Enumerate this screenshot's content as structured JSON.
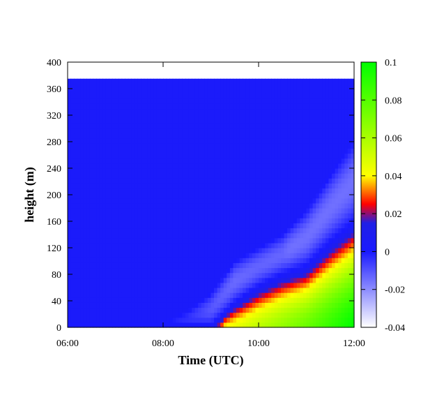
{
  "chart_data": {
    "type": "heatmap",
    "xlabel": "Time (UTC)",
    "ylabel": "height (m)",
    "x_range_hours": [
      6,
      12
    ],
    "x_ticks": [
      {
        "value": 6,
        "label": "06:00"
      },
      {
        "value": 8,
        "label": "08:00"
      },
      {
        "value": 10,
        "label": "10:00"
      },
      {
        "value": 12,
        "label": "12:00"
      }
    ],
    "ylim": [
      0,
      400
    ],
    "y_ticks": [
      0,
      40,
      80,
      120,
      160,
      200,
      240,
      280,
      320,
      360,
      400
    ],
    "data_top_height": 375,
    "colorbar": {
      "range": [
        -0.04,
        0.1
      ],
      "ticks": [
        -0.04,
        -0.02,
        0,
        0.02,
        0.04,
        0.06,
        0.08,
        0.1
      ],
      "tick_labels": [
        "-0.04",
        "-0.02",
        "0",
        "0.02",
        "0.04",
        "0.06",
        "0.08",
        "0.1"
      ],
      "colormap": [
        {
          "value": -0.04,
          "color": "#ffffff"
        },
        {
          "value": 0.0,
          "color": "#1a1aff"
        },
        {
          "value": 0.015,
          "color": "#1f1fe6"
        },
        {
          "value": 0.025,
          "color": "#ff0000"
        },
        {
          "value": 0.04,
          "color": "#ffff00"
        },
        {
          "value": 0.1,
          "color": "#00ff00"
        }
      ]
    },
    "field_description": {
      "background_value": 0.003,
      "positive_layer_top": [
        {
          "t": 6.0,
          "h": 0
        },
        {
          "t": 9.0,
          "h": 0
        },
        {
          "t": 9.5,
          "h": 35
        },
        {
          "t": 10.0,
          "h": 60
        },
        {
          "t": 10.5,
          "h": 78
        },
        {
          "t": 11.0,
          "h": 90
        },
        {
          "t": 11.5,
          "h": 125
        },
        {
          "t": 12.0,
          "h": 155
        }
      ],
      "entrainment_top": [
        {
          "t": 6.0,
          "h": 10
        },
        {
          "t": 8.0,
          "h": 10
        },
        {
          "t": 8.5,
          "h": 30
        },
        {
          "t": 9.0,
          "h": 60
        },
        {
          "t": 9.5,
          "h": 110
        },
        {
          "t": 10.0,
          "h": 130
        },
        {
          "t": 10.5,
          "h": 150
        },
        {
          "t": 11.0,
          "h": 190
        },
        {
          "t": 11.5,
          "h": 245
        },
        {
          "t": 12.0,
          "h": 300
        }
      ],
      "surface_max_value": [
        {
          "t": 6.0,
          "v": 0.0
        },
        {
          "t": 9.0,
          "v": 0.0
        },
        {
          "t": 9.3,
          "v": 0.04
        },
        {
          "t": 10.0,
          "v": 0.055
        },
        {
          "t": 11.0,
          "v": 0.075
        },
        {
          "t": 12.0,
          "v": 0.1
        }
      ],
      "min_entrainment_value": -0.02
    }
  }
}
